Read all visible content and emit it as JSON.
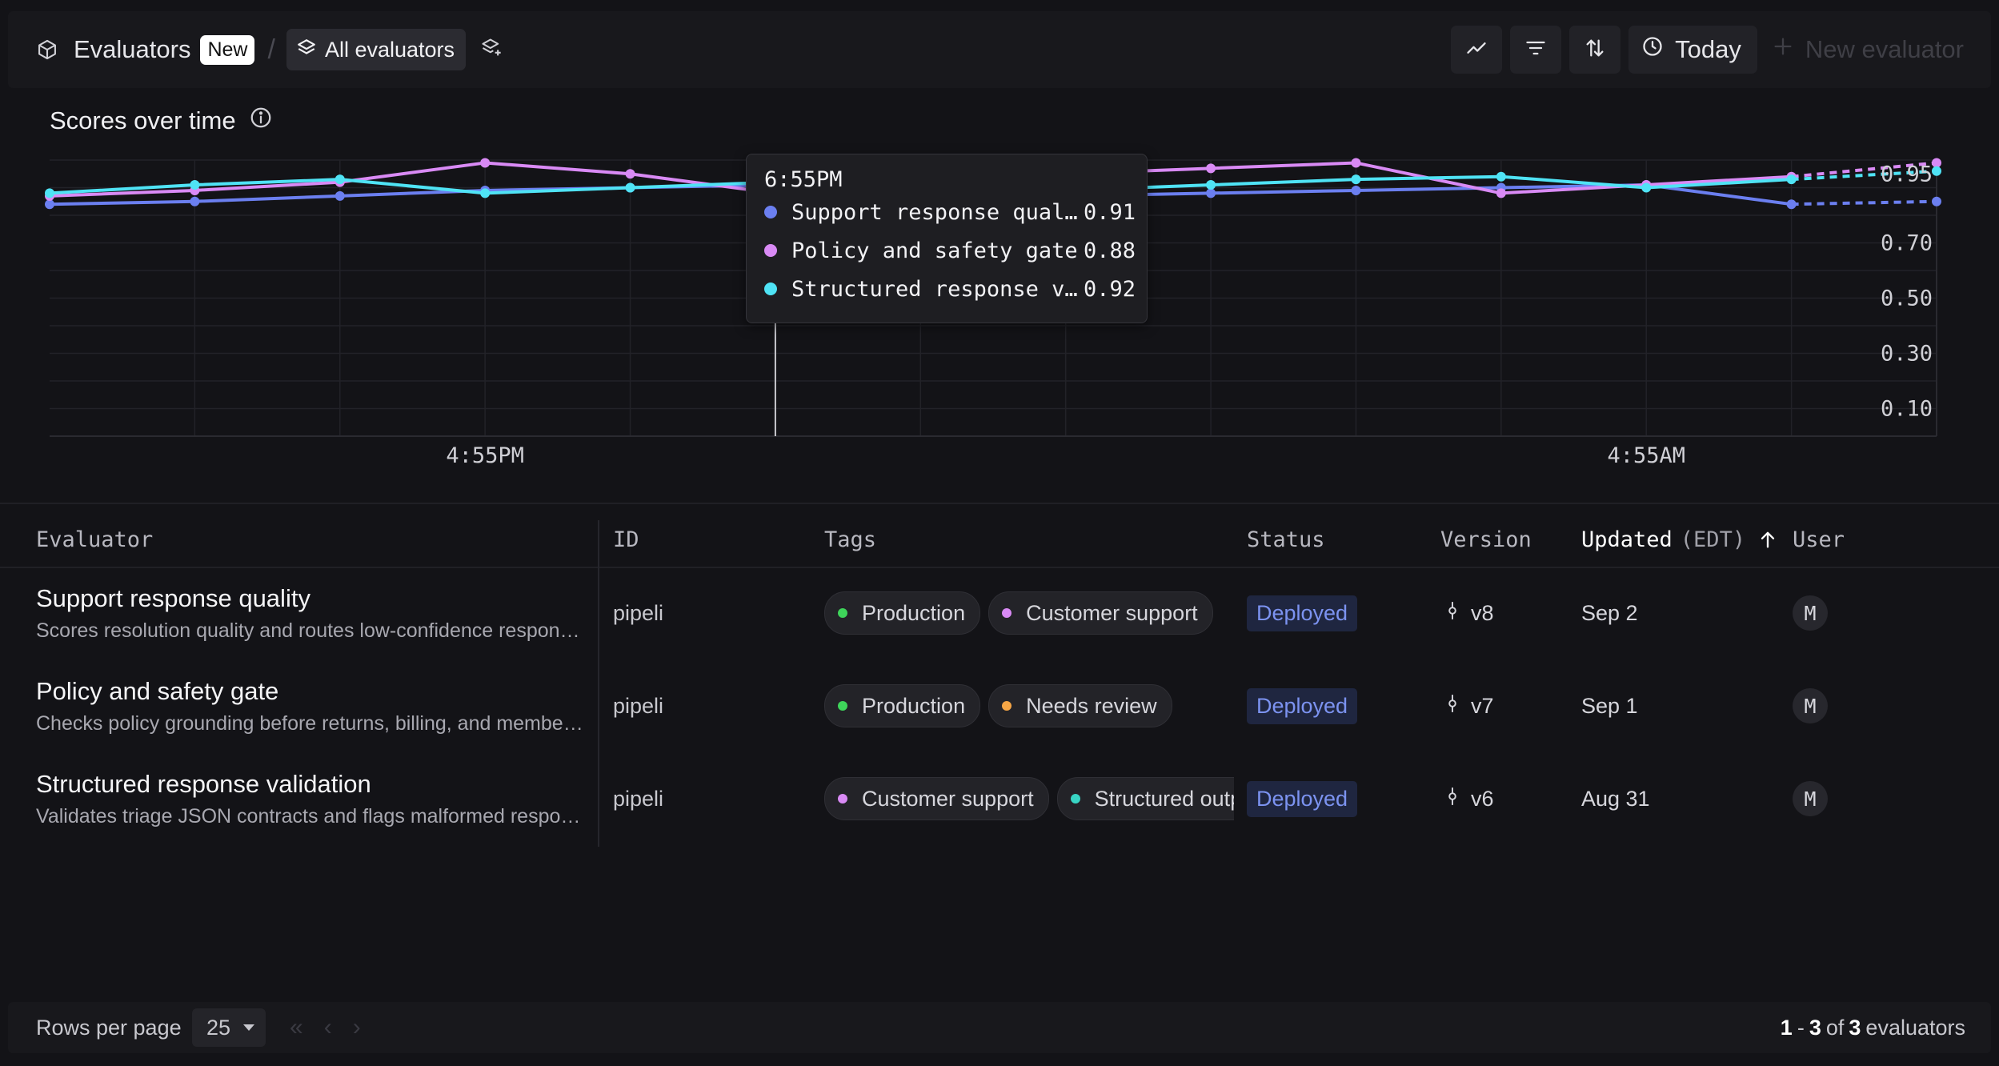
{
  "header": {
    "title": "Evaluators",
    "new_badge": "New",
    "separator": "/",
    "view_label": "All evaluators",
    "time_range": "Today",
    "new_evaluator_label": "New evaluator"
  },
  "chart": {
    "title": "Scores over time",
    "tooltip": {
      "time": "6:55PM",
      "rows": [
        {
          "name": "Support response quality",
          "value": "0.91",
          "color": "#6b7ff0"
        },
        {
          "name": "Policy and safety gate",
          "value": "0.88",
          "color": "#d98af5"
        },
        {
          "name": "Structured response validation",
          "value": "0.92",
          "color": "#4fe3f5"
        }
      ]
    }
  },
  "chart_data": {
    "type": "line",
    "x": [
      "",
      "",
      "",
      "4:55PM",
      "",
      "6:55PM",
      "",
      "",
      "",
      "",
      "",
      "4:55AM",
      "",
      ""
    ],
    "x_tick_labels": [
      "4:55PM",
      "4:55AM"
    ],
    "y_tick_labels": [
      "0.95",
      "0.70",
      "0.50",
      "0.30",
      "0.10"
    ],
    "ylim": [
      0.0,
      1.0
    ],
    "series": [
      {
        "name": "Support response quality",
        "color": "#6b7ff0",
        "values": [
          0.84,
          0.85,
          0.87,
          0.89,
          0.9,
          0.91,
          0.91,
          0.87,
          0.88,
          0.89,
          0.9,
          0.91,
          0.84,
          0.85
        ]
      },
      {
        "name": "Policy and safety gate",
        "color": "#d98af5",
        "values": [
          0.87,
          0.89,
          0.92,
          0.99,
          0.95,
          0.88,
          0.93,
          0.95,
          0.97,
          0.99,
          0.88,
          0.91,
          0.94,
          0.99
        ]
      },
      {
        "name": "Structured response validation",
        "color": "#4fe3f5",
        "values": [
          0.88,
          0.91,
          0.93,
          0.88,
          0.9,
          0.92,
          0.9,
          0.89,
          0.91,
          0.93,
          0.94,
          0.9,
          0.93,
          0.96
        ]
      }
    ],
    "projected_last_segment": true,
    "grid": true
  },
  "table": {
    "columns": {
      "evaluator": "Evaluator",
      "id": "ID",
      "tags": "Tags",
      "status": "Status",
      "version": "Version",
      "updated": "Updated",
      "updated_tz": "(EDT)",
      "user": "User"
    },
    "rows": [
      {
        "name": "Support response quality",
        "description": "Scores resolution quality and routes low-confidence responses to human review.",
        "id": "pipeli",
        "tags": [
          {
            "label": "Production",
            "color": "#3ed45a"
          },
          {
            "label": "Customer support",
            "color": "#d98af5"
          }
        ],
        "status": "Deployed",
        "version": "v8",
        "updated": "Sep 2",
        "user": "M"
      },
      {
        "name": "Policy and safety gate",
        "description": "Checks policy grounding before returns, billing, and membership responses.",
        "id": "pipeli",
        "tags": [
          {
            "label": "Production",
            "color": "#3ed45a"
          },
          {
            "label": "Needs review",
            "color": "#f5a545"
          }
        ],
        "status": "Deployed",
        "version": "v7",
        "updated": "Sep 1",
        "user": "M"
      },
      {
        "name": "Structured response validation",
        "description": "Validates triage JSON contracts and flags malformed responses.",
        "id": "pipeli",
        "tags": [
          {
            "label": "Customer support",
            "color": "#d98af5"
          },
          {
            "label": "Structured output",
            "color": "#38d4c4"
          }
        ],
        "status": "Deployed",
        "version": "v6",
        "updated": "Aug 31",
        "user": "M"
      }
    ]
  },
  "footer": {
    "rows_per_page_label": "Rows per page",
    "rows_per_page": "25",
    "range_start": "1",
    "range_dash": "-",
    "range_end": "3",
    "of": "of",
    "total": "3",
    "unit": "evaluators"
  }
}
